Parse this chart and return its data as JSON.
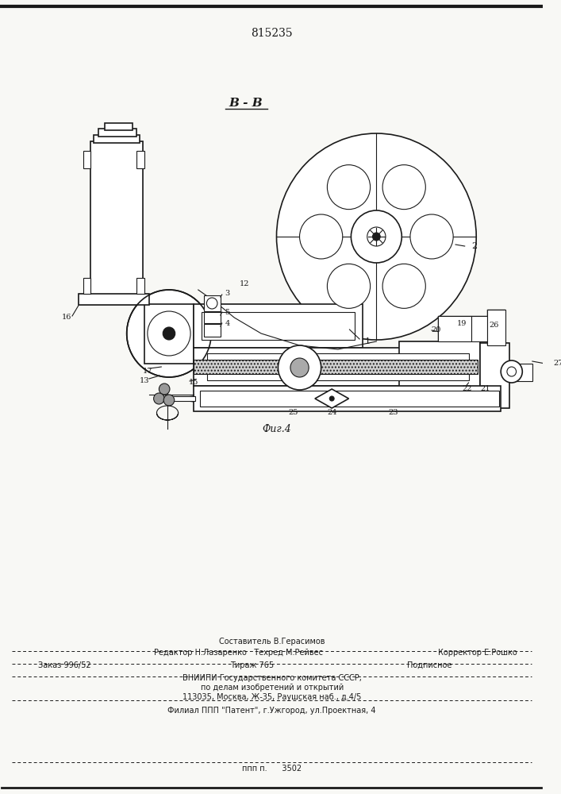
{
  "patent_number": "815235",
  "section_label": "В - В",
  "figure_label": "Фиг.4",
  "bg_color": "#f8f8f5",
  "line_color": "#1a1a1a",
  "fig_w": 7.07,
  "fig_h": 10.0,
  "dpi": 100,
  "footer": {
    "line1_center": "Составитель В.Герасимов",
    "line2_left": "Редактор Н.Лазаренко   Техред М.Рейвес",
    "line2_right": "Корректор Е.Рошко",
    "line3_a": "Заказ 996/52",
    "line3_b": "Тираж 765",
    "line3_c": "Подписное",
    "line4": "ВНИИПИ Государственного комитета СССР,",
    "line5": "по делам изобретений и открытий",
    "line6": "113035, Москва, Ж-35, Раушская наб., д.4/5",
    "line7": "Филиал ППП \"Патент\", г.Ужгород, ул.Проектная, 4",
    "line8": "ппп п.      3502"
  }
}
